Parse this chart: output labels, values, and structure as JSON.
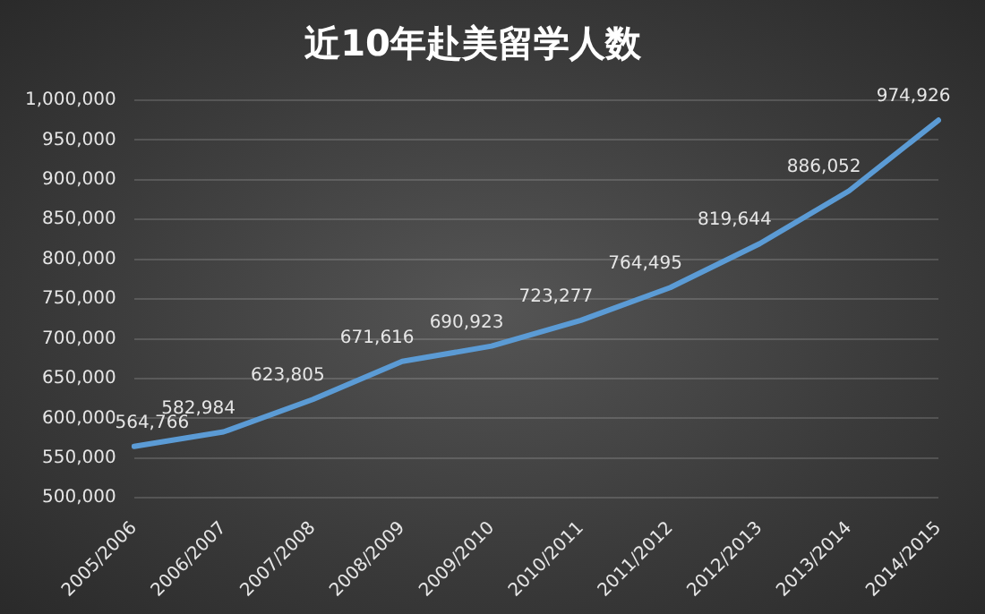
{
  "chart_data": {
    "type": "line",
    "title": "近10年赴美留学人数",
    "categories": [
      "2005/2006",
      "2006/2007",
      "2007/2008",
      "2008/2009",
      "2009/2010",
      "2010/2011",
      "2011/2012",
      "2012/2013",
      "2013/2014",
      "2014/2015"
    ],
    "series": [
      {
        "color": "#5b9bd5",
        "values": [
          564766,
          582984,
          623805,
          671616,
          690923,
          723277,
          764495,
          819644,
          886052,
          974926
        ],
        "value_labels": [
          "564,766",
          "582,984",
          "623,805",
          "671,616",
          "690,923",
          "723,277",
          "764,495",
          "819,644",
          "886,052",
          "974,926"
        ]
      }
    ],
    "ylim": [
      500000,
      1000000
    ],
    "yticks": [
      {
        "value": 500000,
        "label": "500,000"
      },
      {
        "value": 550000,
        "label": "550,000"
      },
      {
        "value": 600000,
        "label": "600,000"
      },
      {
        "value": 650000,
        "label": "650,000"
      },
      {
        "value": 700000,
        "label": "700,000"
      },
      {
        "value": 750000,
        "label": "750,000"
      },
      {
        "value": 800000,
        "label": "800,000"
      },
      {
        "value": 850000,
        "label": "850,000"
      },
      {
        "value": 900000,
        "label": "900,000"
      },
      {
        "value": 950000,
        "label": "950,000"
      },
      {
        "value": 1000000,
        "label": "1,000,000"
      }
    ],
    "grid": "y",
    "legend": false,
    "marker": "none",
    "line_style": "solid"
  }
}
